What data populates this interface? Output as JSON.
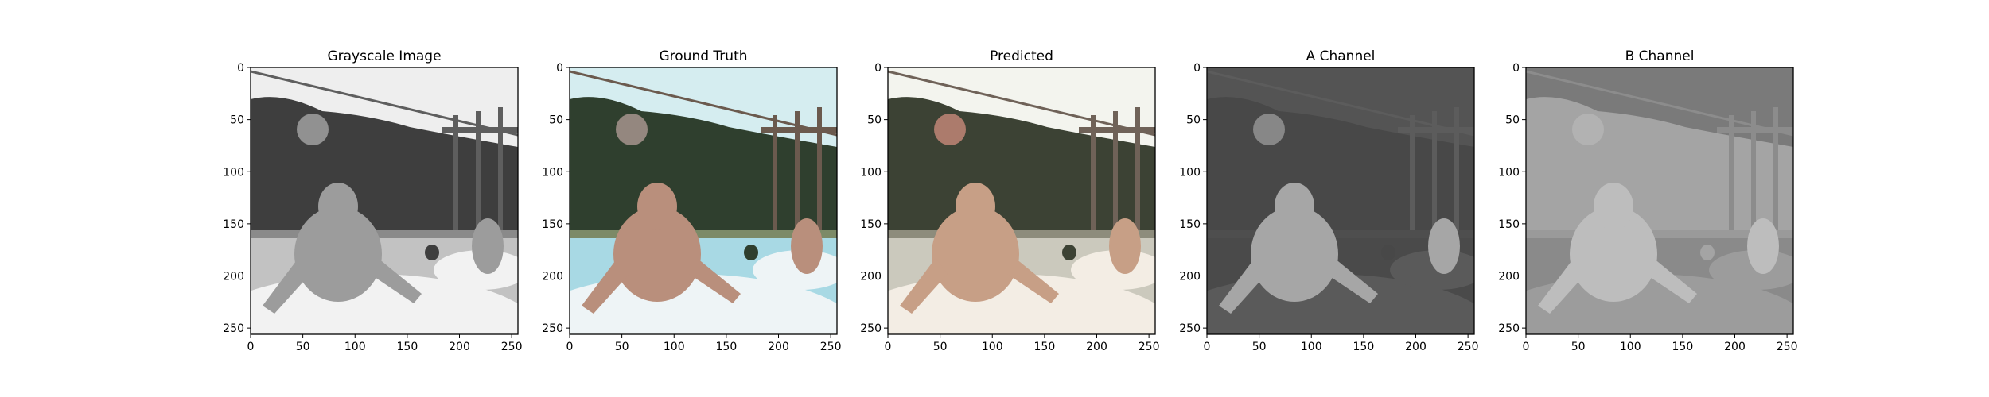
{
  "chart_data": [
    {
      "type": "image",
      "title": "Grayscale Image",
      "xlim": [
        0,
        256
      ],
      "ylim": [
        256,
        0
      ],
      "xticks": [
        0,
        50,
        100,
        150,
        200,
        250
      ],
      "yticks": [
        0,
        50,
        100,
        150,
        200,
        250
      ],
      "palette": {
        "sky": "#eeeeee",
        "hedge": "#3e3e3e",
        "lawn": "#8a8a8a",
        "pool": "#c2c2c2",
        "tube": "#f2f2f2",
        "skin": "#9c9c9c",
        "fence": "#5e5e5e",
        "blob": "#9a9a9a"
      }
    },
    {
      "type": "image",
      "title": "Ground Truth",
      "xlim": [
        0,
        256
      ],
      "ylim": [
        256,
        0
      ],
      "xticks": [
        0,
        50,
        100,
        150,
        200,
        250
      ],
      "yticks": [
        0,
        50,
        100,
        150,
        200,
        250
      ],
      "palette": {
        "sky": "#d5edf0",
        "hedge": "#2f3f2e",
        "lawn": "#7c8a67",
        "pool": "#a8d9e4",
        "tube": "#eef4f6",
        "skin": "#b98f7c",
        "fence": "#6b5a4e",
        "blob": "#a08f88"
      }
    },
    {
      "type": "image",
      "title": "Predicted",
      "xlim": [
        0,
        256
      ],
      "ylim": [
        256,
        0
      ],
      "xticks": [
        0,
        50,
        100,
        150,
        200,
        250
      ],
      "yticks": [
        0,
        50,
        100,
        150,
        200,
        250
      ],
      "palette": {
        "sky": "#f3f4ee",
        "hedge": "#3c4234",
        "lawn": "#8d8c7c",
        "pool": "#cbc9bd",
        "tube": "#f3ede4",
        "skin": "#c79f86",
        "fence": "#6f6258",
        "blob": "#b88272"
      }
    },
    {
      "type": "image",
      "title": "A Channel",
      "xlim": [
        0,
        256
      ],
      "ylim": [
        256,
        0
      ],
      "xticks": [
        0,
        50,
        100,
        150,
        200,
        250
      ],
      "yticks": [
        0,
        50,
        100,
        150,
        200,
        250
      ],
      "palette": {
        "sky": "#545454",
        "hedge": "#484848",
        "lawn": "#4e4e4e",
        "pool": "#4a4a4a",
        "tube": "#5a5a5a",
        "skin": "#a6a6a6",
        "fence": "#5c5c5c",
        "blob": "#8e8e8e"
      }
    },
    {
      "type": "image",
      "title": "B Channel",
      "xlim": [
        0,
        256
      ],
      "ylim": [
        256,
        0
      ],
      "xticks": [
        0,
        50,
        100,
        150,
        200,
        250
      ],
      "yticks": [
        0,
        50,
        100,
        150,
        200,
        250
      ],
      "palette": {
        "sky": "#7a7a7a",
        "hedge": "#a4a4a4",
        "lawn": "#9a9a9a",
        "pool": "#8a8a8a",
        "tube": "#9c9c9c",
        "skin": "#bdbdbd",
        "fence": "#8c8c8c",
        "blob": "#b4b4b4"
      }
    }
  ]
}
